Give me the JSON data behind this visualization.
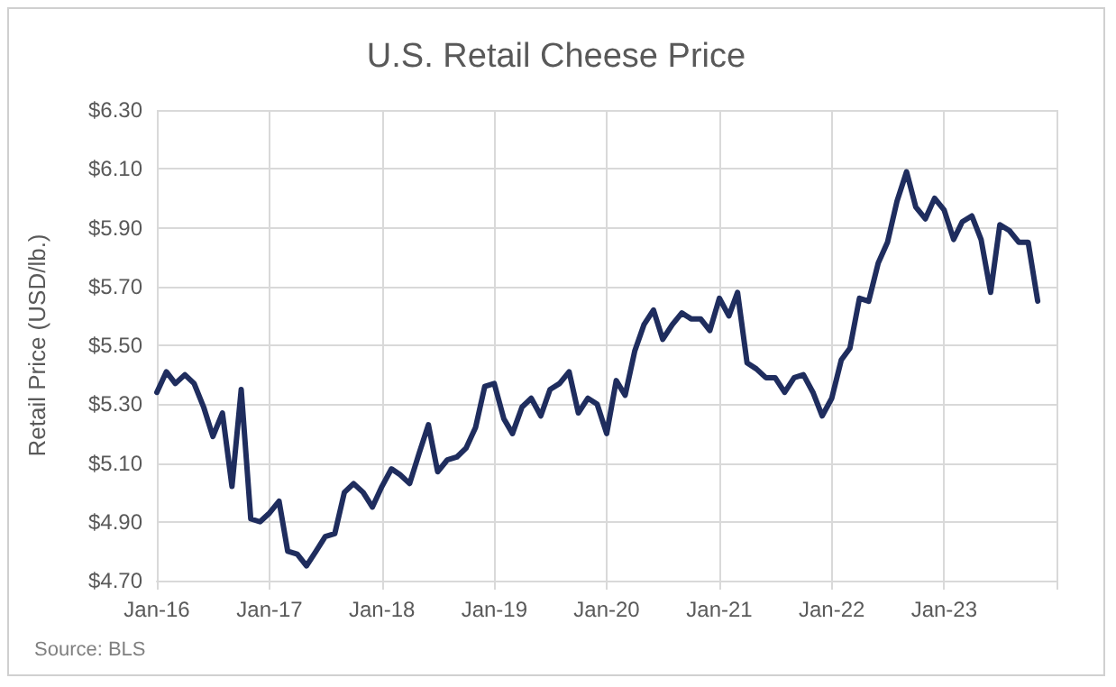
{
  "chart_data": {
    "type": "line",
    "title": "U.S. Retail Cheese Price",
    "ylabel": "Retail Price (USD/lb.)",
    "annotations": [
      "Source: BLS"
    ],
    "x": [
      "2016-01",
      "2016-02",
      "2016-03",
      "2016-04",
      "2016-05",
      "2016-06",
      "2016-07",
      "2016-08",
      "2016-09",
      "2016-10",
      "2016-11",
      "2016-12",
      "2017-01",
      "2017-02",
      "2017-03",
      "2017-04",
      "2017-05",
      "2017-06",
      "2017-07",
      "2017-08",
      "2017-09",
      "2017-10",
      "2017-11",
      "2017-12",
      "2018-01",
      "2018-02",
      "2018-03",
      "2018-04",
      "2018-05",
      "2018-06",
      "2018-07",
      "2018-08",
      "2018-09",
      "2018-10",
      "2018-11",
      "2018-12",
      "2019-01",
      "2019-02",
      "2019-03",
      "2019-04",
      "2019-05",
      "2019-06",
      "2019-07",
      "2019-08",
      "2019-09",
      "2019-10",
      "2019-11",
      "2019-12",
      "2020-01",
      "2020-02",
      "2020-03",
      "2020-04",
      "2020-05",
      "2020-06",
      "2020-07",
      "2020-08",
      "2020-09",
      "2020-10",
      "2020-11",
      "2020-12",
      "2021-01",
      "2021-02",
      "2021-03",
      "2021-04",
      "2021-05",
      "2021-06",
      "2021-07",
      "2021-08",
      "2021-09",
      "2021-10",
      "2021-11",
      "2021-12",
      "2022-01",
      "2022-02",
      "2022-03",
      "2022-04",
      "2022-05",
      "2022-06",
      "2022-07",
      "2022-08",
      "2022-09",
      "2022-10",
      "2022-11",
      "2022-12",
      "2023-01",
      "2023-02",
      "2023-03",
      "2023-04",
      "2023-05",
      "2023-06",
      "2023-07",
      "2023-08",
      "2023-09",
      "2023-10",
      "2023-11"
    ],
    "series": [
      {
        "color": "#1f2d5e",
        "values": [
          5.34,
          5.41,
          5.37,
          5.4,
          5.37,
          5.29,
          5.19,
          5.27,
          5.02,
          5.35,
          4.91,
          4.9,
          4.93,
          4.97,
          4.8,
          4.79,
          4.75,
          4.8,
          4.85,
          4.86,
          5.0,
          5.03,
          5.0,
          4.95,
          5.02,
          5.08,
          5.06,
          5.03,
          5.13,
          5.23,
          5.07,
          5.11,
          5.12,
          5.15,
          5.22,
          5.36,
          5.37,
          5.25,
          5.2,
          5.29,
          5.32,
          5.26,
          5.35,
          5.37,
          5.41,
          5.27,
          5.32,
          5.3,
          5.2,
          5.38,
          5.33,
          5.48,
          5.57,
          5.62,
          5.52,
          5.57,
          5.61,
          5.59,
          5.59,
          5.55,
          5.66,
          5.6,
          5.68,
          5.44,
          5.42,
          5.39,
          5.39,
          5.34,
          5.39,
          5.4,
          5.34,
          5.26,
          5.32,
          5.45,
          5.49,
          5.66,
          5.65,
          5.78,
          5.85,
          5.99,
          6.09,
          5.97,
          5.93,
          6.0,
          5.96,
          5.86,
          5.92,
          5.94,
          5.86,
          5.68,
          5.91,
          5.89,
          5.85,
          5.85,
          5.65
        ]
      }
    ],
    "xlim": [
      "2016-01",
      "2024-01"
    ],
    "xticks": [
      {
        "value": "2016-01",
        "label": "Jan-16"
      },
      {
        "value": "2017-01",
        "label": "Jan-17"
      },
      {
        "value": "2018-01",
        "label": "Jan-18"
      },
      {
        "value": "2019-01",
        "label": "Jan-19"
      },
      {
        "value": "2020-01",
        "label": "Jan-20"
      },
      {
        "value": "2021-01",
        "label": "Jan-21"
      },
      {
        "value": "2022-01",
        "label": "Jan-22"
      },
      {
        "value": "2023-01",
        "label": "Jan-23"
      },
      {
        "value": "2024-01",
        "label": null
      }
    ],
    "ylim": [
      4.7,
      6.3
    ],
    "yticks": [
      {
        "value": 4.7,
        "label": "$4.70"
      },
      {
        "value": 4.9,
        "label": "$4.90"
      },
      {
        "value": 5.1,
        "label": "$5.10"
      },
      {
        "value": 5.3,
        "label": "$5.30"
      },
      {
        "value": 5.5,
        "label": "$5.50"
      },
      {
        "value": 5.7,
        "label": "$5.70"
      },
      {
        "value": 5.9,
        "label": "$5.90"
      },
      {
        "value": 6.1,
        "label": "$6.10"
      },
      {
        "value": 6.3,
        "label": "$6.30"
      }
    ],
    "grid": true,
    "marker": "none",
    "line_style": "solid"
  }
}
